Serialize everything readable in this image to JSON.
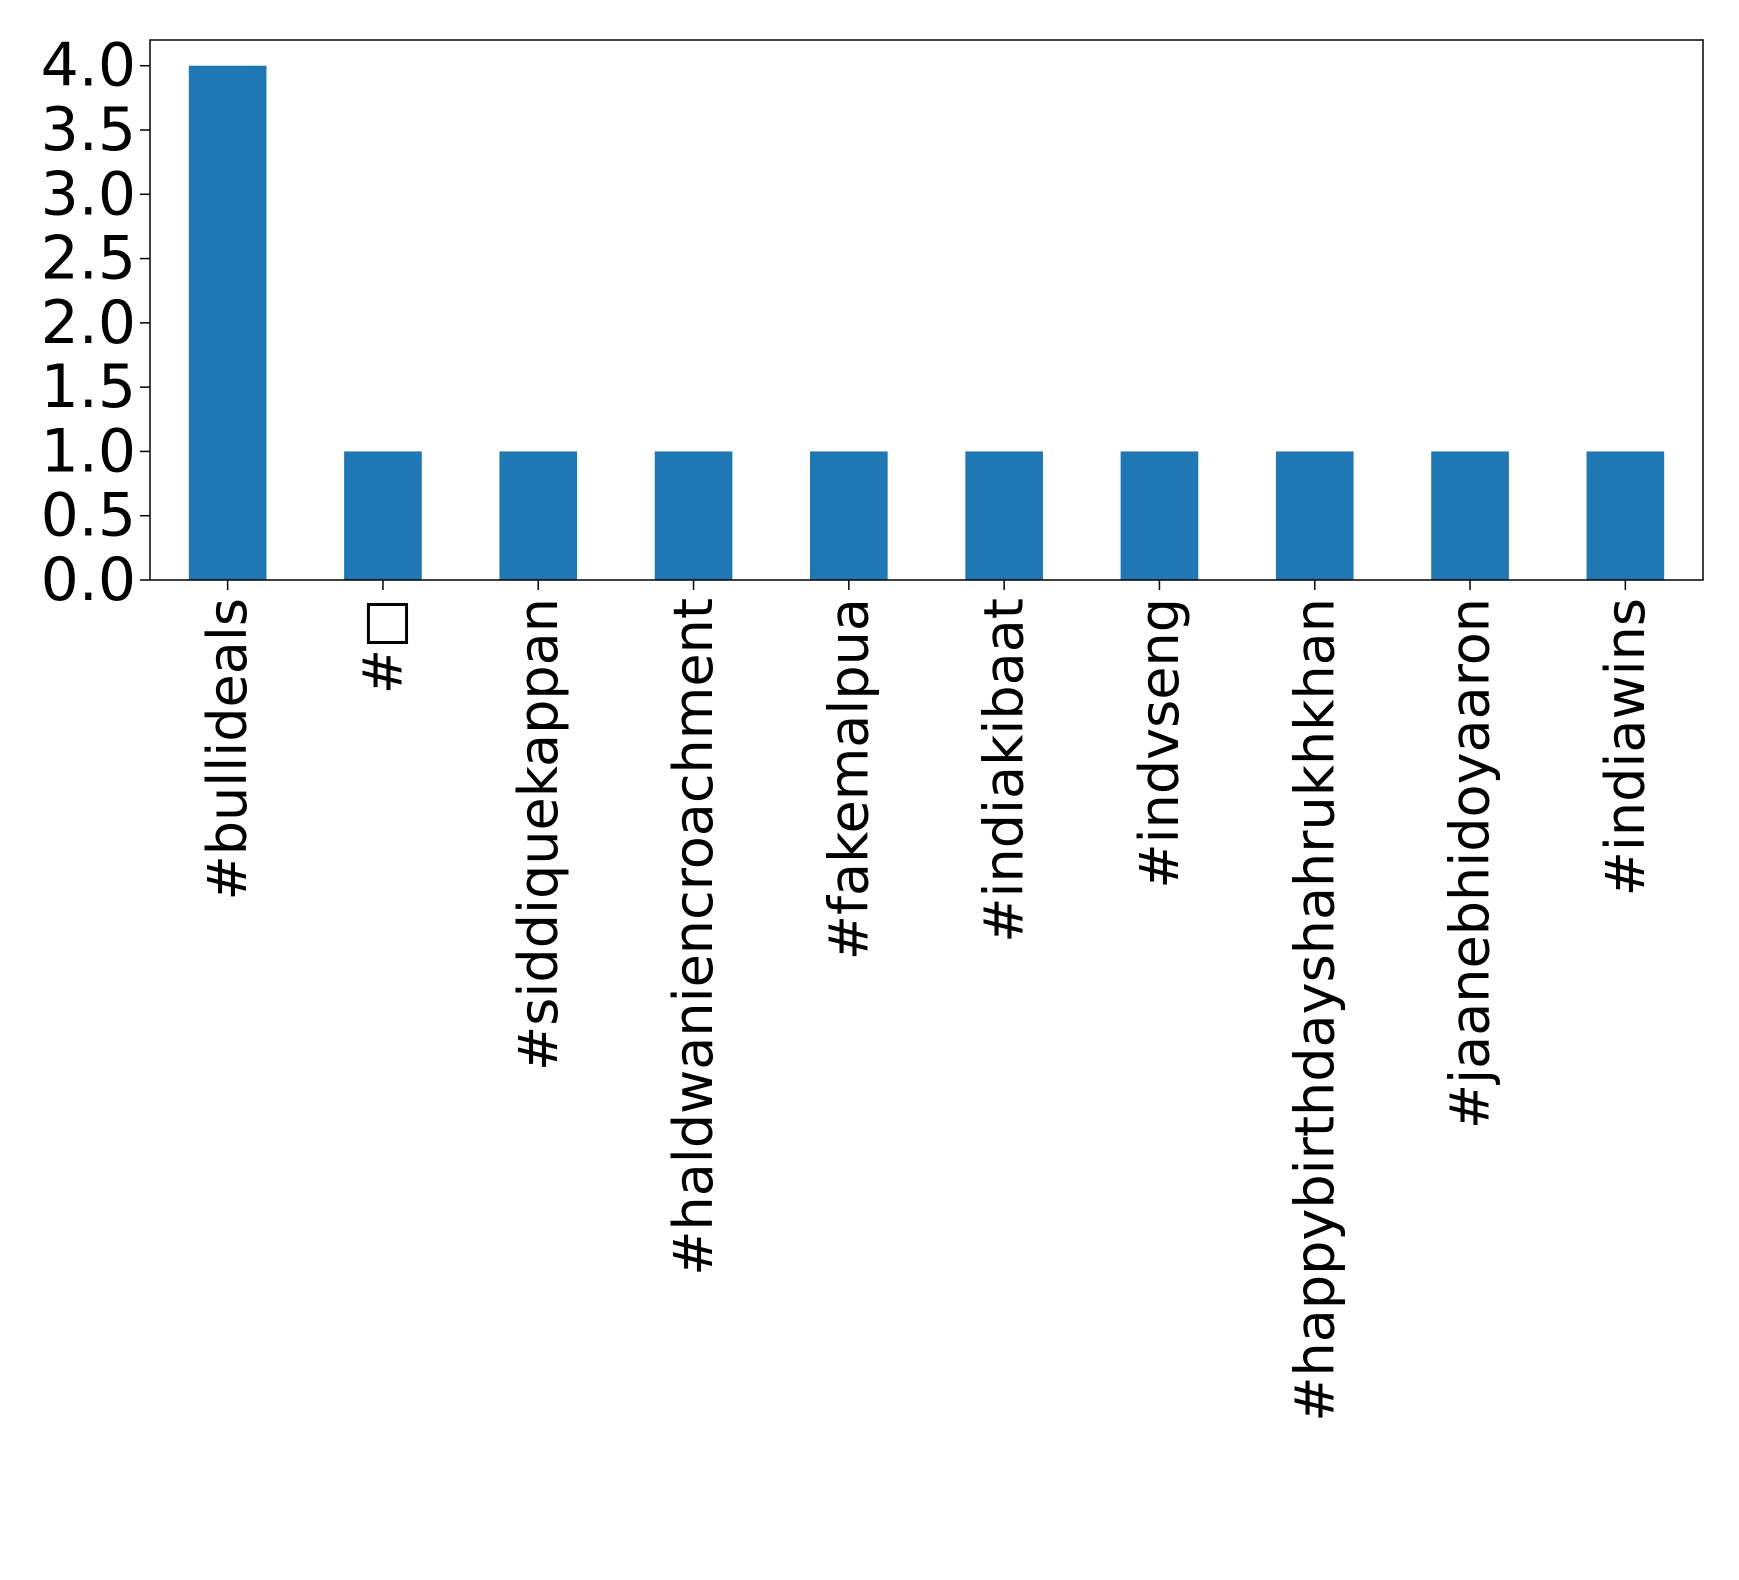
{
  "chart_data": {
    "type": "bar",
    "title": "",
    "xlabel": "",
    "ylabel": "",
    "categories": [
      "#bullideals",
      "#□",
      "#siddiquekappan",
      "#haldwaniencroachment",
      "#fakemalpua",
      "#indiakibaat",
      "#indvseng",
      "#happybirthdayshahrukhkhan",
      "#jaanebhidoyaaron",
      "#indiawins"
    ],
    "values": [
      4,
      1,
      1,
      1,
      1,
      1,
      1,
      1,
      1,
      1
    ],
    "ylim": [
      0,
      4.2
    ],
    "yticks": [
      "0.0",
      "0.5",
      "1.0",
      "1.5",
      "2.0",
      "2.5",
      "3.0",
      "3.5",
      "4.0"
    ],
    "grid": false,
    "legend": "none",
    "colors": {
      "bar": "#1f77b4",
      "axis": "#000000",
      "background": "#ffffff"
    }
  }
}
